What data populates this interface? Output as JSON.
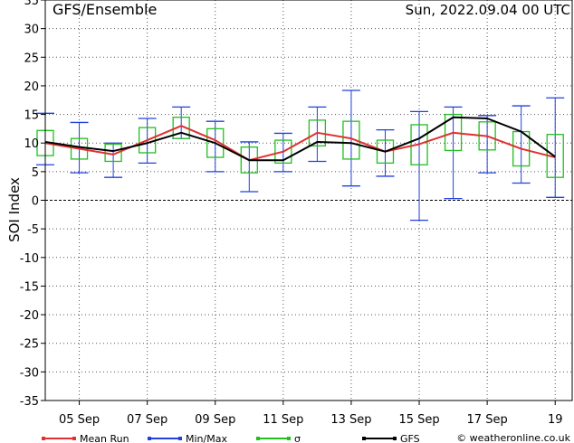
{
  "chart_data": {
    "type": "line",
    "title": "GFS/Ensemble",
    "subtitle": "Sun, 2022.09.04   00 UTC",
    "ylabel": "SOI Index",
    "ylim": [
      -35,
      35
    ],
    "yticks": [
      35,
      30,
      25,
      20,
      15,
      10,
      5,
      0,
      -5,
      -10,
      -15,
      -20,
      -25,
      -30,
      -35
    ],
    "grid": true,
    "x_ticks": [
      {
        "label": "05 Sep",
        "x": 1
      },
      {
        "label": "07 Sep",
        "x": 3
      },
      {
        "label": "09 Sep",
        "x": 5
      },
      {
        "label": "11 Sep",
        "x": 7
      },
      {
        "label": "13 Sep",
        "x": 9
      },
      {
        "label": "15 Sep",
        "x": 11
      },
      {
        "label": "17 Sep",
        "x": 13
      },
      {
        "label": "19",
        "x": 15
      }
    ],
    "xlim": [
      0,
      15.5
    ],
    "x": [
      0,
      1,
      2,
      3,
      4,
      5,
      6,
      7,
      8,
      9,
      10,
      11,
      12,
      13,
      14,
      15
    ],
    "series": [
      {
        "name": "Mean Run",
        "color": "#e03030",
        "kind": "line",
        "values": [
          10.0,
          9.0,
          8.0,
          10.5,
          13.0,
          10.5,
          7.0,
          8.5,
          11.8,
          10.8,
          8.5,
          9.8,
          11.8,
          11.2,
          9.0,
          7.5
        ]
      },
      {
        "name": "GFS",
        "color": "#000000",
        "kind": "line",
        "values": [
          10.2,
          9.3,
          8.6,
          10.0,
          11.8,
          10.0,
          7.0,
          7.0,
          10.2,
          10.0,
          8.5,
          10.8,
          14.5,
          14.3,
          12.0,
          7.6
        ]
      },
      {
        "name": "Min/Max",
        "color": "#2040e0",
        "kind": "range",
        "min": [
          6.2,
          4.8,
          4.0,
          6.5,
          10.8,
          5.0,
          1.5,
          5.0,
          6.8,
          2.5,
          4.2,
          -3.5,
          0.3,
          4.8,
          3.0,
          0.5
        ],
        "max": [
          15.2,
          13.6,
          10.0,
          14.3,
          16.3,
          13.8,
          10.2,
          11.7,
          16.3,
          19.2,
          12.3,
          15.5,
          16.3,
          14.8,
          16.5,
          17.9
        ]
      },
      {
        "name": "σ",
        "color": "#20c020",
        "kind": "box",
        "low": [
          7.8,
          7.2,
          6.8,
          8.3,
          10.8,
          7.5,
          4.8,
          6.5,
          9.5,
          7.2,
          6.5,
          6.2,
          8.7,
          8.8,
          6.0,
          4.0
        ],
        "high": [
          12.2,
          10.8,
          9.8,
          12.7,
          14.5,
          12.5,
          9.3,
          10.5,
          14.0,
          13.8,
          10.5,
          13.2,
          15.0,
          13.7,
          12.0,
          11.5
        ]
      }
    ],
    "legend": [
      "Mean Run",
      "Min/Max",
      "σ",
      "GFS"
    ],
    "legend_position": "bottom",
    "credit": "© weatheronline.co.uk"
  }
}
